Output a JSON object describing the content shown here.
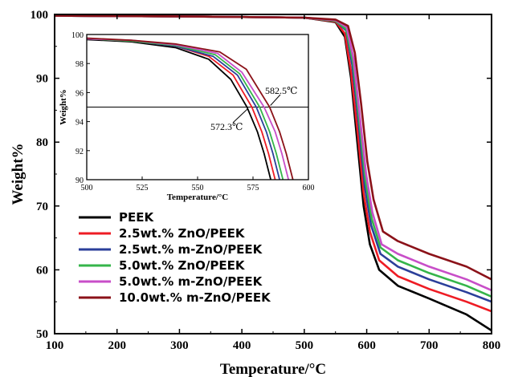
{
  "chart_data": [
    {
      "type": "line",
      "xlabel": "Temperature/°C",
      "ylabel": "Weight%",
      "xlim": [
        100,
        800
      ],
      "ylim": [
        50,
        100
      ],
      "xticks": [
        100,
        200,
        300,
        400,
        500,
        600,
        700,
        800
      ],
      "yticks": [
        50,
        60,
        70,
        80,
        90,
        100
      ],
      "legend_position": "bottom-left",
      "grid": false,
      "series": [
        {
          "name": "PEEK",
          "color": "#000000",
          "points": [
            [
              100,
              99.8
            ],
            [
              300,
              99.7
            ],
            [
              500,
              99.5
            ],
            [
              550,
              98.8
            ],
            [
              565,
              96.5
            ],
            [
              575,
              90
            ],
            [
              585,
              80
            ],
            [
              595,
              70
            ],
            [
              605,
              64
            ],
            [
              620,
              60
            ],
            [
              650,
              57.5
            ],
            [
              700,
              55.5
            ],
            [
              760,
              53
            ],
            [
              800,
              50.5
            ]
          ]
        },
        {
          "name": "2.5wt.% ZnO/PEEK",
          "color": "#ee1c24",
          "points": [
            [
              100,
              99.8
            ],
            [
              300,
              99.7
            ],
            [
              500,
              99.5
            ],
            [
              550,
              98.9
            ],
            [
              565,
              97
            ],
            [
              575,
              91
            ],
            [
              585,
              82
            ],
            [
              595,
              72
            ],
            [
              605,
              66
            ],
            [
              620,
              61.5
            ],
            [
              650,
              59
            ],
            [
              700,
              57
            ],
            [
              760,
              55
            ],
            [
              800,
              53.5
            ]
          ]
        },
        {
          "name": "2.5wt.% m-ZnO/PEEK",
          "color": "#2b3f9a",
          "points": [
            [
              100,
              99.8
            ],
            [
              300,
              99.7
            ],
            [
              500,
              99.5
            ],
            [
              550,
              99
            ],
            [
              567,
              97.5
            ],
            [
              577,
              92
            ],
            [
              587,
              83
            ],
            [
              597,
              73
            ],
            [
              607,
              67
            ],
            [
              622,
              62.5
            ],
            [
              650,
              60.5
            ],
            [
              700,
              58.5
            ],
            [
              760,
              56.5
            ],
            [
              800,
              55
            ]
          ]
        },
        {
          "name": "5.0wt.% ZnO/PEEK",
          "color": "#35b54a",
          "points": [
            [
              100,
              99.8
            ],
            [
              300,
              99.7
            ],
            [
              500,
              99.5
            ],
            [
              550,
              99
            ],
            [
              567,
              97.7
            ],
            [
              578,
              92.5
            ],
            [
              588,
              83.5
            ],
            [
              598,
              74
            ],
            [
              608,
              68
            ],
            [
              622,
              63.5
            ],
            [
              650,
              61.5
            ],
            [
              700,
              59.5
            ],
            [
              760,
              57.5
            ],
            [
              800,
              55.8
            ]
          ]
        },
        {
          "name": "5.0wt.% m-ZnO/PEEK",
          "color": "#c84ec8",
          "points": [
            [
              100,
              99.8
            ],
            [
              300,
              99.7
            ],
            [
              500,
              99.5
            ],
            [
              550,
              99.1
            ],
            [
              568,
              98
            ],
            [
              579,
              93
            ],
            [
              589,
              84
            ],
            [
              599,
              75
            ],
            [
              609,
              69
            ],
            [
              624,
              64
            ],
            [
              650,
              62.5
            ],
            [
              700,
              60.5
            ],
            [
              760,
              58.5
            ],
            [
              800,
              56.8
            ]
          ]
        },
        {
          "name": "10.0wt.% m-ZnO/PEEK",
          "color": "#8b1219",
          "points": [
            [
              100,
              99.8
            ],
            [
              300,
              99.7
            ],
            [
              500,
              99.5
            ],
            [
              550,
              99.2
            ],
            [
              570,
              98.2
            ],
            [
              581,
              94
            ],
            [
              591,
              86
            ],
            [
              601,
              77
            ],
            [
              611,
              71
            ],
            [
              626,
              66
            ],
            [
              650,
              64.5
            ],
            [
              700,
              62.5
            ],
            [
              760,
              60.5
            ],
            [
              800,
              58.5
            ]
          ]
        }
      ]
    },
    {
      "type": "line",
      "xlabel": "Temperature/°C",
      "ylabel": "Weight%",
      "xlim": [
        500,
        600
      ],
      "ylim": [
        90,
        100
      ],
      "xticks": [
        500,
        525,
        550,
        575,
        600
      ],
      "yticks": [
        90,
        92,
        94,
        96,
        98,
        100
      ],
      "reference_line": {
        "y": 95
      },
      "annotations": [
        {
          "text": "572.3℃",
          "x": 572.3,
          "y": 95
        },
        {
          "text": "582.5℃",
          "x": 582.5,
          "y": 95
        }
      ],
      "series": [
        {
          "name": "PEEK",
          "color": "#000000",
          "points": [
            [
              500,
              99.65
            ],
            [
              520,
              99.5
            ],
            [
              540,
              99.1
            ],
            [
              555,
              98.3
            ],
            [
              565,
              96.9
            ],
            [
              572.3,
              95
            ],
            [
              577,
              93.3
            ],
            [
              580,
              91.8
            ],
            [
              583,
              90
            ]
          ]
        },
        {
          "name": "2.5wt.% ZnO/PEEK",
          "color": "#ee1c24",
          "points": [
            [
              500,
              99.7
            ],
            [
              520,
              99.55
            ],
            [
              540,
              99.2
            ],
            [
              555,
              98.5
            ],
            [
              566,
              97.2
            ],
            [
              574.5,
              95
            ],
            [
              579,
              93.3
            ],
            [
              582,
              91.8
            ],
            [
              585,
              90
            ]
          ]
        },
        {
          "name": "2.5wt.% m-ZnO/PEEK",
          "color": "#2b3f9a",
          "points": [
            [
              500,
              99.7
            ],
            [
              520,
              99.55
            ],
            [
              540,
              99.2
            ],
            [
              557,
              98.5
            ],
            [
              568,
              97.2
            ],
            [
              576.5,
              95
            ],
            [
              581,
              93.3
            ],
            [
              584,
              91.8
            ],
            [
              587,
              90
            ]
          ]
        },
        {
          "name": "5.0wt.% ZnO/PEEK",
          "color": "#35b54a",
          "points": [
            [
              500,
              99.7
            ],
            [
              520,
              99.55
            ],
            [
              540,
              99.25
            ],
            [
              558,
              98.6
            ],
            [
              569,
              97.3
            ],
            [
              578,
              95
            ],
            [
              582.5,
              93.3
            ],
            [
              585.5,
              91.8
            ],
            [
              588.5,
              90
            ]
          ]
        },
        {
          "name": "5.0wt.% m-ZnO/PEEK",
          "color": "#c84ec8",
          "points": [
            [
              500,
              99.7
            ],
            [
              520,
              99.6
            ],
            [
              540,
              99.3
            ],
            [
              559,
              98.7
            ],
            [
              570,
              97.4
            ],
            [
              580,
              95
            ],
            [
              585,
              93.3
            ],
            [
              588,
              91.8
            ],
            [
              591,
              90
            ]
          ]
        },
        {
          "name": "10.0wt.% m-ZnO/PEEK",
          "color": "#8b1219",
          "points": [
            [
              500,
              99.75
            ],
            [
              520,
              99.6
            ],
            [
              540,
              99.35
            ],
            [
              560,
              98.8
            ],
            [
              572,
              97.6
            ],
            [
              582.5,
              95
            ],
            [
              587,
              93.3
            ],
            [
              590,
              91.8
            ],
            [
              593,
              90
            ]
          ]
        }
      ]
    }
  ]
}
